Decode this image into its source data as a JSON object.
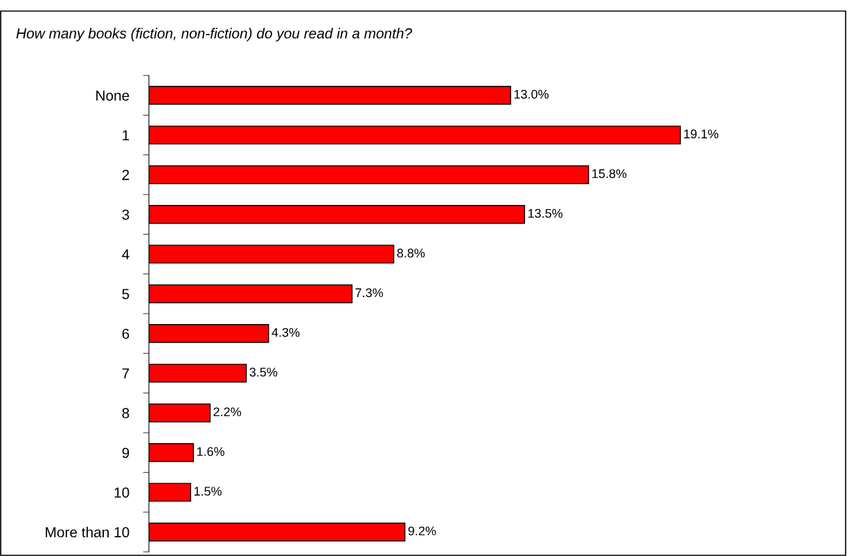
{
  "chart_data": {
    "type": "bar",
    "orientation": "horizontal",
    "title": "How many books (fiction, non-fiction) do you read in a month?",
    "categories": [
      "None",
      "1",
      "2",
      "3",
      "4",
      "5",
      "6",
      "7",
      "8",
      "9",
      "10",
      "More than 10"
    ],
    "values": [
      13.0,
      19.1,
      15.8,
      13.5,
      8.8,
      7.3,
      4.3,
      3.5,
      2.2,
      1.6,
      1.5,
      9.2
    ],
    "value_labels": [
      "13.0%",
      "19.1%",
      "15.8%",
      "13.5%",
      "8.8%",
      "7.3%",
      "4.3%",
      "3.5%",
      "2.2%",
      "1.6%",
      "1.5%",
      "9.2%"
    ],
    "color": "#ff0000",
    "tick_labels": "y",
    "grid": false,
    "legend": false
  }
}
